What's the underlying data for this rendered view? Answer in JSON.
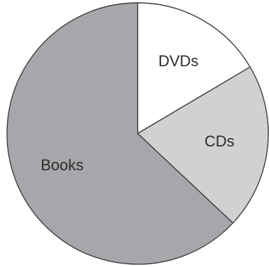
{
  "chart_data": {
    "type": "pie",
    "title": "",
    "start_angle_deg": 0,
    "direction": "clockwise",
    "legend": "none",
    "slices": [
      {
        "label": "DVDs",
        "value": 16.5,
        "color": "#ffffff"
      },
      {
        "label": "CDs",
        "value": 20.5,
        "color": "#d1d1d3"
      },
      {
        "label": "Books",
        "value": 63.0,
        "color": "#a6a7aa"
      }
    ],
    "stroke_color": "#3f3f3f",
    "label_color": "#2d2d2d"
  }
}
